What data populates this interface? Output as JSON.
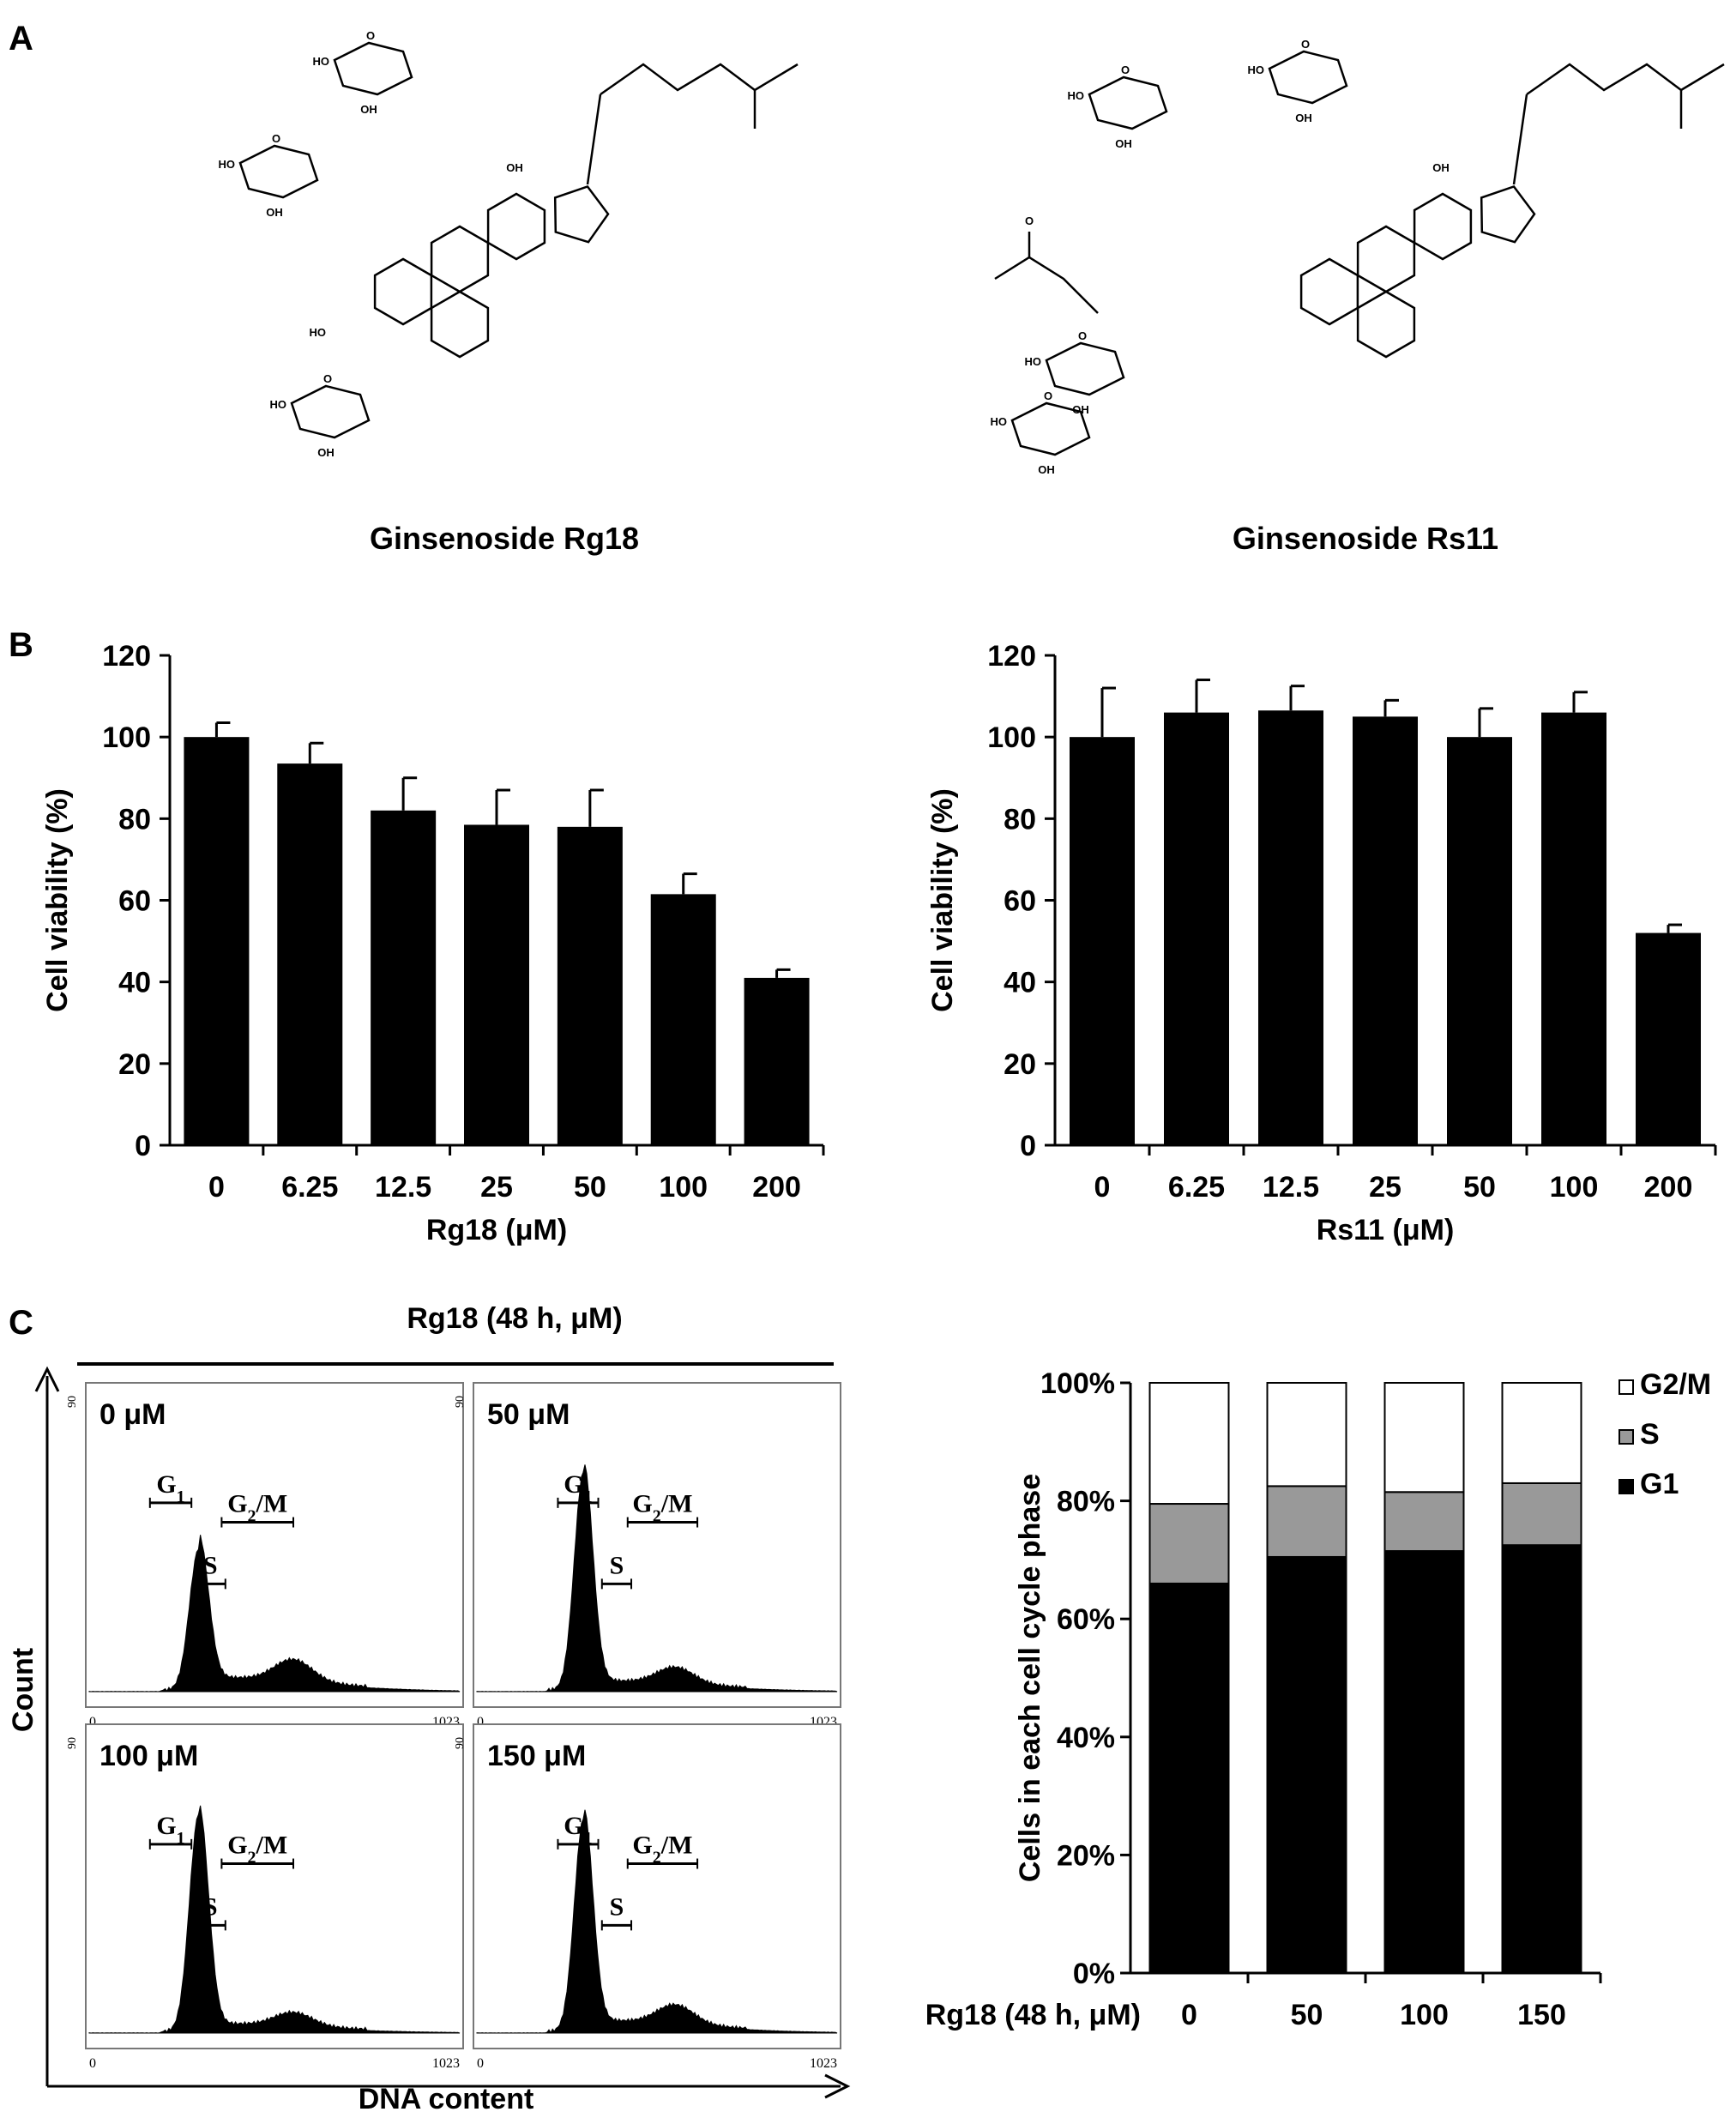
{
  "panels": {
    "a_label": "A",
    "b_label": "B",
    "c_label": "C"
  },
  "structures": {
    "left_caption": "Ginsenoside Rg18",
    "right_caption": "Ginsenoside Rs11",
    "atom_labels": {
      "hydroxyl": "HO",
      "hydroxyl_r": "OH",
      "oxygen": "O"
    }
  },
  "chart_data": [
    {
      "type": "bar",
      "categories": [
        "0",
        "6.25",
        "12.5",
        "25",
        "50",
        "100",
        "200"
      ],
      "values": [
        100,
        93.5,
        82,
        78.5,
        78,
        61.5,
        41
      ],
      "errors": [
        3.5,
        5,
        8,
        8.5,
        9,
        5,
        2
      ],
      "xlabel": "Rg18 (μM)",
      "ylabel": "Cell viability (%)",
      "ylim": [
        0,
        120
      ],
      "yticks": [
        0,
        20,
        40,
        60,
        80,
        100,
        120
      ],
      "color": "#000000"
    },
    {
      "type": "bar",
      "categories": [
        "0",
        "6.25",
        "12.5",
        "25",
        "50",
        "100",
        "200"
      ],
      "values": [
        100,
        106,
        106.5,
        105,
        100,
        106,
        52
      ],
      "errors": [
        12,
        8,
        6,
        4,
        7,
        5,
        2
      ],
      "xlabel": "Rs11 (μM)",
      "ylabel": "Cell viability (%)",
      "ylim": [
        0,
        120
      ],
      "yticks": [
        0,
        20,
        40,
        60,
        80,
        100,
        120
      ],
      "color": "#000000"
    },
    {
      "type": "histogram",
      "group_title": "Rg18  (48 h, μM)",
      "xlabel": "DNA content",
      "ylabel": "Count",
      "x_min_label": "0",
      "x_max_label": "1023",
      "y_tick_label": "90",
      "phase_labels": {
        "g1": "G",
        "g1_sub": "1",
        "s": "S",
        "g2m_pre": "G",
        "g2m_sub": "2",
        "g2m_post": "/M"
      },
      "panels": [
        {
          "label": "0 μM",
          "g1_peak": 0.52,
          "g2_level": 0.08
        },
        {
          "label": "50 μM",
          "g1_peak": 0.8,
          "g2_level": 0.06
        },
        {
          "label": "100 μM",
          "g1_peak": 0.8,
          "g2_level": 0.05
        },
        {
          "label": "150 μM",
          "g1_peak": 0.78,
          "g2_level": 0.07
        }
      ]
    },
    {
      "type": "stacked-bar",
      "categories": [
        "0",
        "50",
        "100",
        "150"
      ],
      "xlabel": "Rg18 (48 h, μM)",
      "ylabel": "Cells in each cell cycle phase",
      "ylim": [
        0,
        100
      ],
      "yticks": [
        "0%",
        "20%",
        "40%",
        "60%",
        "80%",
        "100%"
      ],
      "legend_placement": "top-right",
      "series": [
        {
          "name": "G1",
          "values": [
            66,
            70.5,
            71.5,
            72.5
          ],
          "color": "#000000"
        },
        {
          "name": "S",
          "values": [
            13.5,
            12,
            10,
            10.5
          ],
          "color": "#999999"
        },
        {
          "name": "G2/M",
          "values": [
            20.5,
            17.5,
            18.5,
            17
          ],
          "color": "#ffffff"
        }
      ]
    }
  ]
}
